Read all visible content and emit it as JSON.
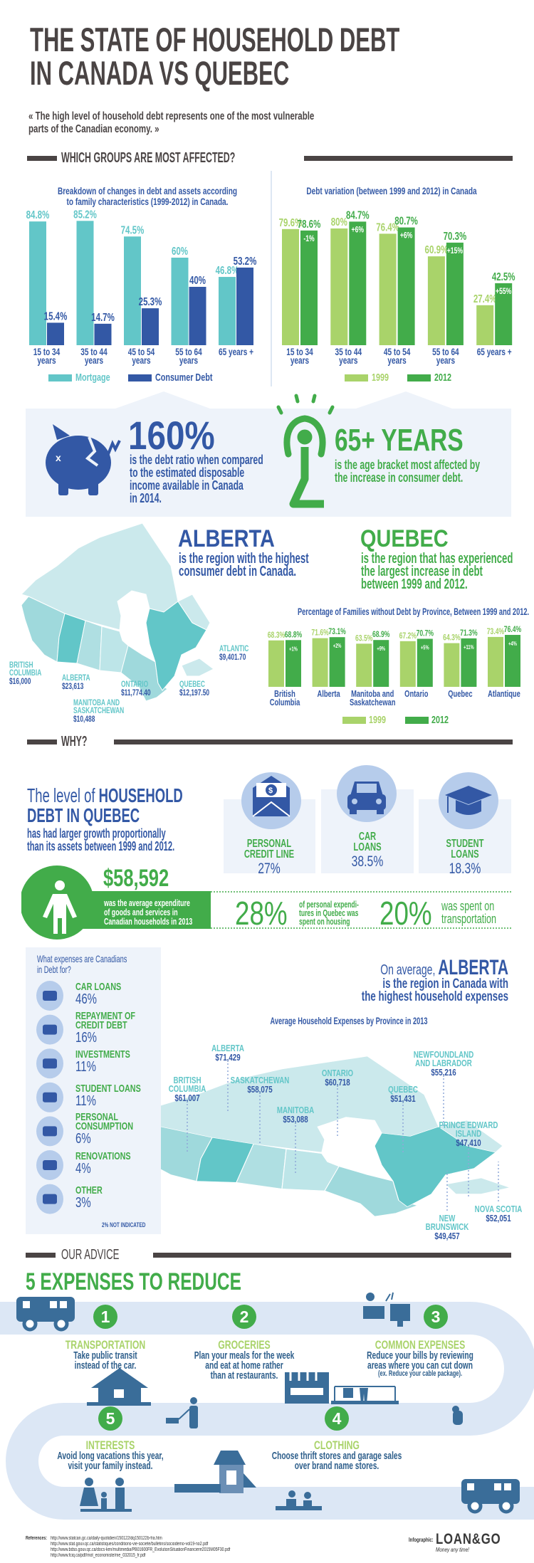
{
  "title": [
    "THE STATE OF HOUSEHOLD DEBT",
    "IN CANADA VS QUEBEC"
  ],
  "quote": [
    "« The high level of household debt represents one of the most vulnerable",
    "parts of the Canadian economy. »"
  ],
  "sections": {
    "groups": "WHICH GROUPS ARE MOST AFFECTED?",
    "why": "WHY?",
    "advice": "OUR ADVICE"
  },
  "colors": {
    "dark": "#4a4444",
    "blue": "#3358a5",
    "teal": "#62c6c8",
    "light_green": "#a9d36a",
    "green": "#42ac4a",
    "panel": "#eef3fa"
  },
  "chart_data": [
    {
      "type": "bar",
      "title_lines": [
        "Breakdown of changes in debt and assets according",
        "to family characteristics (1999-2012) in Canada."
      ],
      "categories": [
        [
          "15 to 34",
          "years"
        ],
        [
          "35 to 44",
          "years"
        ],
        [
          "45 to 54",
          "years"
        ],
        [
          "55 to 64",
          "years"
        ],
        [
          "65 years +"
        ]
      ],
      "series": [
        {
          "name": "Mortgage",
          "values": [
            84.8,
            85.2,
            74.5,
            60,
            46.8
          ],
          "color": "#62c6c8"
        },
        {
          "name": "Consumer Debt",
          "values": [
            15.4,
            14.7,
            25.3,
            40,
            53.2
          ],
          "color": "#3358a5"
        }
      ],
      "unit": "%",
      "ylim": [
        0,
        100
      ],
      "grid": false,
      "legend": "bottom"
    },
    {
      "type": "bar",
      "title_lines": [
        "Debt variation (between 1999 and 2012) in Canada"
      ],
      "categories": [
        [
          "15 to 34",
          "years"
        ],
        [
          "35 to 44",
          "years"
        ],
        [
          "45 to 54",
          "years"
        ],
        [
          "55 to 64",
          "years"
        ],
        [
          "65 years +"
        ]
      ],
      "series": [
        {
          "name": "1999",
          "values": [
            79.6,
            80,
            76.4,
            60.9,
            27.4
          ],
          "color": "#a9d36a"
        },
        {
          "name": "2012",
          "values": [
            78.6,
            84.7,
            80.7,
            70.3,
            42.5
          ],
          "color": "#42ac4a"
        }
      ],
      "change_labels": [
        "-1%",
        "+6%",
        "+6%",
        "+15%",
        "+55%"
      ],
      "unit": "%",
      "ylim": [
        0,
        100
      ],
      "grid": false,
      "legend": "bottom"
    },
    {
      "type": "bar",
      "title_lines": [
        "Percentage of Families without Debt by Province, Between 1999 and 2012."
      ],
      "categories": [
        [
          "British",
          "Columbia"
        ],
        [
          "Alberta"
        ],
        [
          "Manitoba and",
          "Saskatchewan"
        ],
        [
          "Ontario"
        ],
        [
          "Quebec"
        ],
        [
          "Atlantique"
        ]
      ],
      "series": [
        {
          "name": "1999",
          "values": [
            68.3,
            71.6,
            63.5,
            67.2,
            64.3,
            73.4
          ],
          "color": "#a9d36a"
        },
        {
          "name": "2012",
          "values": [
            68.8,
            73.1,
            68.9,
            70.7,
            71.3,
            76.4
          ],
          "color": "#42ac4a"
        }
      ],
      "change_labels": [
        "+1%",
        "+2%",
        "+9%",
        "+5%",
        "+11%",
        "+4%"
      ],
      "unit": "%",
      "grid": false,
      "legend": "bottom"
    }
  ],
  "stats": {
    "debt_ratio": {
      "value": "160%",
      "lines": [
        "is the debt ratio when compared",
        "to the estimated disposable",
        "income available in Canada",
        "in 2014."
      ],
      "icon": "broken-piggy-bank"
    },
    "age": {
      "value": "65+ YEARS",
      "lines": [
        "is the age bracket most affected by",
        "the increase in consumer debt."
      ],
      "icon": "stressed-person"
    }
  },
  "regions": {
    "alberta": {
      "heading": "ALBERTA",
      "lines": [
        "is the region with the highest",
        "consumer debt in Canada."
      ]
    },
    "quebec": {
      "heading": "QUEBEC",
      "lines": [
        "is the region that has experienced",
        "the largest increase in debt",
        "between 1999 and 2012."
      ]
    }
  },
  "map1": [
    {
      "name": [
        "BRITISH",
        "COLUMBIA"
      ],
      "value": "$16,000"
    },
    {
      "name": [
        "ALBERTA"
      ],
      "value": "$23,613"
    },
    {
      "name": [
        "ONTARIO"
      ],
      "value": "$11,774.40"
    },
    {
      "name": [
        "QUEBEC"
      ],
      "value": "$12,197.50"
    },
    {
      "name": [
        "ATLANTIC"
      ],
      "value": "$9,401.70"
    },
    {
      "name": [
        "MANITOBA AND",
        "SASKATCHEWAN"
      ],
      "value": "$10,488"
    }
  ],
  "why": {
    "prefix": "The level of ",
    "strong1": "HOUSEHOLD",
    "strong2": "DEBT IN QUEBEC",
    "lines": [
      "has had larger growth proportionally",
      "than its assets between 1999 and 2012."
    ],
    "cards": [
      {
        "label": [
          "PERSONAL",
          "CREDIT LINE"
        ],
        "value": "27%",
        "icon": "envelope-dollar"
      },
      {
        "label": [
          "CAR",
          "LOANS"
        ],
        "value": "38.5%",
        "icon": "car"
      },
      {
        "label": [
          "STUDENT",
          "LOANS"
        ],
        "value": "18.3%",
        "icon": "graduation-cap"
      }
    ],
    "expenditure": {
      "value": "$58,592",
      "lines": [
        "was the average expenditure",
        "of goods and services in",
        "Canadian households in 2013"
      ]
    },
    "housing": {
      "value": "28%",
      "lines": [
        "of personal expendi-",
        "tures in Quebec was",
        "spent on housing"
      ]
    },
    "transport": {
      "value": "20%",
      "lines": [
        "was spent on",
        "transportation"
      ]
    }
  },
  "debt_uses": {
    "title": [
      "What expenses are Canadians",
      "in Debt for?"
    ],
    "items": [
      {
        "label": [
          "CAR LOANS"
        ],
        "value": "46%",
        "icon": "car"
      },
      {
        "label": [
          "REPAYMENT OF",
          "CREDIT DEBT"
        ],
        "value": "16%",
        "icon": "money-bag"
      },
      {
        "label": [
          "INVESTMENTS"
        ],
        "value": "11%",
        "icon": "growth-chart"
      },
      {
        "label": [
          "STUDENT LOANS"
        ],
        "value": "11%",
        "icon": "graduation-cap"
      },
      {
        "label": [
          "PERSONAL",
          "CONSUMPTION"
        ],
        "value": "6%",
        "icon": "shopping-cart"
      },
      {
        "label": [
          "RENOVATIONS"
        ],
        "value": "4%",
        "icon": "house"
      },
      {
        "label": [
          "OTHER"
        ],
        "value": "3%",
        "icon": "wallet-cash"
      }
    ],
    "note": "2% NOT INDICATED"
  },
  "expenses": {
    "prefix": "On average, ",
    "heading": "ALBERTA",
    "lines": [
      "is the region in Canada with",
      "the highest household expenses"
    ],
    "map_title": "Average Household Expenses by Province in 2013",
    "provinces": [
      {
        "name": [
          "ALBERTA"
        ],
        "value": "$71,429"
      },
      {
        "name": [
          "NEWFOUNDLAND",
          "AND LABRADOR"
        ],
        "value": "$55,216"
      },
      {
        "name": [
          "BRITISH",
          "COLUMBIA"
        ],
        "value": "$61,007"
      },
      {
        "name": [
          "SASKATCHEWAN"
        ],
        "value": "$58,075"
      },
      {
        "name": [
          "ONTARIO"
        ],
        "value": "$60,718"
      },
      {
        "name": [
          "QUEBEC"
        ],
        "value": "$51,431"
      },
      {
        "name": [
          "MANITOBA"
        ],
        "value": "$53,088"
      },
      {
        "name": [
          "PRINCE EDWARD",
          "ISLAND"
        ],
        "value": "$47,410"
      },
      {
        "name": [
          "NEW",
          "BRUNSWICK"
        ],
        "value": "$49,457"
      },
      {
        "name": [
          "NOVA SCOTIA"
        ],
        "value": "$52,051"
      }
    ]
  },
  "advice": {
    "heading": "5 EXPENSES TO REDUCE",
    "steps": [
      {
        "num": "1",
        "title": "TRANSPORTATION",
        "lines": [
          "Take public transit",
          "instead of the car."
        ]
      },
      {
        "num": "2",
        "title": "GROCERIES",
        "lines": [
          "Plan your meals for the week",
          "and eat at home rather",
          "than at restaurants."
        ]
      },
      {
        "num": "3",
        "title": "COMMON EXPENSES",
        "lines": [
          "Reduce your bills by reviewing",
          "areas where you can cut down",
          "(ex. Reduce your cable package)."
        ]
      },
      {
        "num": "4",
        "title": "CLOTHING",
        "lines": [
          "Choose thrift stores and garage sales",
          "over brand name stores."
        ]
      },
      {
        "num": "5",
        "title": "INTERESTS",
        "lines": [
          "Avoid long vacations this year,",
          "visit your family instead."
        ]
      }
    ]
  },
  "footer": {
    "references_label": "References:",
    "references": [
      "http://www.statcan.gc.ca/daily-quotidien/150122/dq150122b-fra.htm",
      "http://www.stat.gouv.qc.ca/statistiques/conditions-vie-societe/bulletins/sociodemo-vol19-no2.pdf",
      "http://www.bdso.gouv.qc.ca/docs-ken/multimedia/PB01600FR_EvolutionSituationFinanciere2015M05F30.pdf",
      "http://www.fciq.ca/pdf/mot_economiste/me_032015_fr.pdf"
    ],
    "credit_label": "Infographic:",
    "logo": "LOAN&GO",
    "tagline": "Money any time!"
  }
}
